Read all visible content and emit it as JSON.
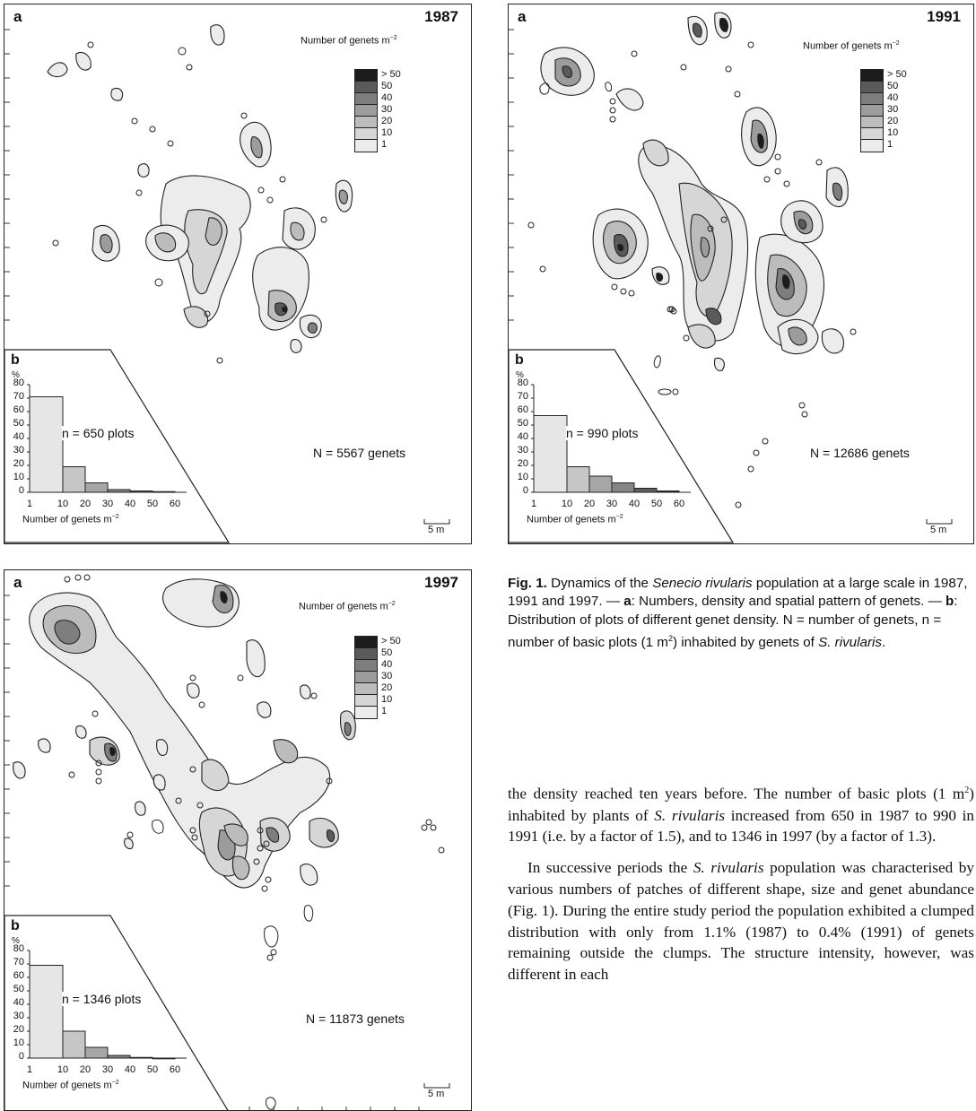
{
  "panels": [
    {
      "label_a": "a",
      "year": "1987",
      "legend_title": "Number of genets m",
      "legend_exp": "−2",
      "legend_items": [
        "> 50",
        "50",
        "40",
        "30",
        "20",
        "10",
        "1"
      ],
      "label_b": "b",
      "pct": "%",
      "yticks": [
        "80",
        "70",
        "60",
        "50",
        "40",
        "30",
        "20",
        "10",
        "0"
      ],
      "xticks": [
        "1",
        "10",
        "20",
        "30",
        "40",
        "50",
        "60"
      ],
      "xlabel": "Number of genets m",
      "xlabel_exp": "−2",
      "n_plots": "n = 650 plots",
      "N_genets": "N = 5567 genets",
      "scale": "5 m"
    },
    {
      "label_a": "a",
      "year": "1991",
      "legend_title": "Number of genets m",
      "legend_exp": "−2",
      "legend_items": [
        "> 50",
        "50",
        "40",
        "30",
        "20",
        "10",
        "1"
      ],
      "label_b": "b",
      "pct": "%",
      "yticks": [
        "80",
        "70",
        "60",
        "50",
        "40",
        "30",
        "20",
        "10",
        "0"
      ],
      "xticks": [
        "1",
        "10",
        "20",
        "30",
        "40",
        "50",
        "60"
      ],
      "xlabel": "Number of genets m",
      "xlabel_exp": "−2",
      "n_plots": "n = 990 plots",
      "N_genets": "N = 12686 genets",
      "scale": "5 m"
    },
    {
      "label_a": "a",
      "year": "1997",
      "legend_title": "Number of genets m",
      "legend_exp": "−2",
      "legend_items": [
        "> 50",
        "50",
        "40",
        "30",
        "20",
        "10",
        "1"
      ],
      "label_b": "b",
      "pct": "%",
      "yticks": [
        "80",
        "70",
        "60",
        "50",
        "40",
        "30",
        "20",
        "10",
        "0"
      ],
      "xticks": [
        "1",
        "10",
        "20",
        "30",
        "40",
        "50",
        "60"
      ],
      "xlabel": "Number of genets m",
      "xlabel_exp": "−2",
      "n_plots": "n = 1346 plots",
      "N_genets": "N = 11873 genets",
      "scale": "5 m"
    }
  ],
  "chart_data": [
    {
      "type": "bar",
      "categories": [
        "1–10",
        "10–20",
        "20–30",
        "30–40",
        "40–50",
        "50–60"
      ],
      "values": [
        71,
        19,
        7,
        2,
        1,
        0.5
      ],
      "ylim": [
        0,
        80
      ],
      "xlabel": "Number of genets m−2",
      "ylabel": "%"
    },
    {
      "type": "bar",
      "categories": [
        "1–10",
        "10–20",
        "20–30",
        "30–40",
        "40–50",
        "50–60"
      ],
      "values": [
        57,
        19,
        12,
        7,
        3,
        1
      ],
      "ylim": [
        0,
        80
      ],
      "xlabel": "Number of genets m−2",
      "ylabel": "%"
    },
    {
      "type": "bar",
      "categories": [
        "1–10",
        "10–20",
        "20–30",
        "30–40",
        "40–50",
        "50–60"
      ],
      "values": [
        69,
        20,
        8,
        2,
        0.5,
        0
      ],
      "ylim": [
        0,
        80
      ],
      "xlabel": "Number of genets m−2",
      "ylabel": "%"
    }
  ],
  "colors": {
    "legend": [
      "#1c1c1c",
      "#5a5a5a",
      "#7e7e7e",
      "#9c9c9c",
      "#bcbcbc",
      "#d6d6d6",
      "#ececec"
    ],
    "bars": [
      "#e6e6e6",
      "#c6c6c6",
      "#a6a6a6",
      "#858585",
      "#5e5e5e",
      "#2f2f2f"
    ]
  },
  "caption": {
    "fig": "Fig. 1.",
    "t1": " Dynamics of the ",
    "species": "Senecio rivularis",
    "t2": " population at a large scale in 1987, 1991 and 1997. — ",
    "a": "a",
    "t3": ": Numbers, density and spatial pattern of genets. — ",
    "b": "b",
    "t4": ": Distribution of plots of different genet density. N = number of genets, n = number of basic plots (1 m",
    "sup": "2",
    "t5": ") inhabited by genets of ",
    "species_short": "S. rivularis",
    "t6": "."
  },
  "body": {
    "p1a": "the density reached ten years before. The number of basic plots (1 m",
    "p1_sup": "2",
    "p1b": ") inhabited by plants of ",
    "p1_sp": "S. rivularis",
    "p1c": " increased from 650 in 1987 to 990 in 1991 (i.e. by a factor of 1.5), and to 1346 in 1997 (by a factor of 1.3).",
    "p2a": "In successive periods the ",
    "p2_sp": "S. rivularis",
    "p2b": " population was characterised by various numbers of patches of different shape, size and genet abundance (Fig. 1). During the entire study period the population exhibited a clumped distribution with only from 1.1% (1987) to 0.4% (1991) of genets remaining outside the clumps. The structure intensity, however, was different in each"
  }
}
